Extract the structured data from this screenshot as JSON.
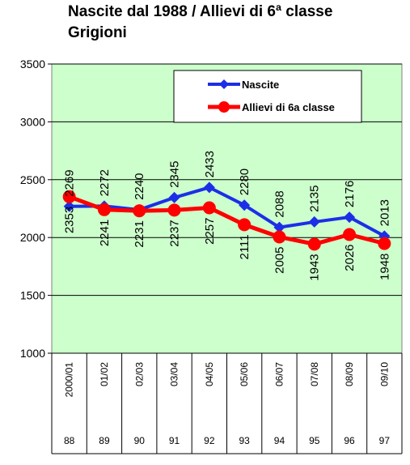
{
  "chart_data": {
    "type": "line",
    "title_line1": "Nascite dal 1988 / Allievi di 6ª classe",
    "title_line2": "Grigioni",
    "xlabel": "",
    "ylabel": "",
    "ylim": [
      1000,
      3500
    ],
    "yticks": [
      "1000",
      "1500",
      "2000",
      "2500",
      "3000",
      "3500"
    ],
    "grid": true,
    "legend_position": "top-right",
    "categories": [
      "2000/01",
      "01/02",
      "02/03",
      "03/04",
      "04/05",
      "05/06",
      "06/07",
      "07/08",
      "08/09",
      "09/10"
    ],
    "birth_years": [
      "88",
      "89",
      "90",
      "91",
      "92",
      "93",
      "94",
      "95",
      "96",
      "97"
    ],
    "series": [
      {
        "name": "Nascite",
        "color": "#1c2fe6",
        "marker": "diamond",
        "labels": "above",
        "values": [
          2269,
          2272,
          2240,
          2345,
          2433,
          2280,
          2088,
          2135,
          2176,
          2013
        ]
      },
      {
        "name": "Allievi di 6a classe",
        "color": "#ff0000",
        "marker": "circle",
        "labels": "below",
        "values": [
          2353,
          2241,
          2231,
          2237,
          2257,
          2111,
          2005,
          1943,
          2026,
          1948
        ]
      }
    ],
    "plot_background": "#ccffcc",
    "grid_color": "#000000"
  }
}
